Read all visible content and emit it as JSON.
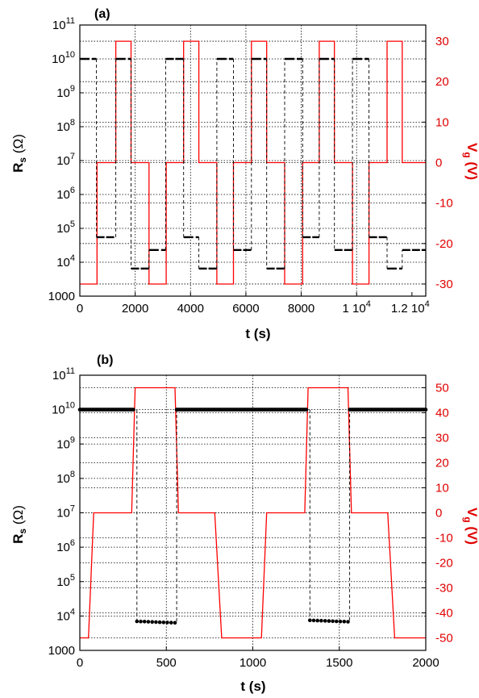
{
  "chart_data": [
    {
      "type": "line",
      "title": "(a)",
      "xlabel": "t (s)",
      "ylabel": "R_s (Ω)",
      "y2label": "V_g (V)",
      "xlim": [
        0,
        12500
      ],
      "ylim_log10": [
        3,
        11
      ],
      "y2lim": [
        -33,
        34
      ],
      "x_ticks": [
        0,
        2000,
        4000,
        6000,
        8000,
        10000,
        12000
      ],
      "x_tick_labels": [
        "0",
        "2000",
        "4000",
        "6000",
        "8000",
        "1 10^4",
        "1.2 10^4"
      ],
      "y_tick_exp": [
        3,
        4,
        5,
        6,
        7,
        8,
        9,
        10,
        11
      ],
      "y_tick_labels": [
        "1000",
        "10^4",
        "10^5",
        "10^6",
        "10^7",
        "10^8",
        "10^9",
        "10^10",
        "10^11"
      ],
      "y2_ticks": [
        -30,
        -20,
        -10,
        0,
        10,
        20,
        30
      ],
      "grid": true,
      "series": [
        {
          "axis": "right",
          "color": "#ff0000",
          "x": [
            0,
            620,
            620,
            1300,
            1300,
            1850,
            1850,
            2500,
            2500,
            3120,
            3120,
            3750,
            3750,
            4300,
            4300,
            4950,
            4950,
            5550,
            5550,
            6200,
            6200,
            6750,
            6750,
            7400,
            7400,
            8050,
            8050,
            8650,
            8650,
            9200,
            9200,
            9850,
            9850,
            10450,
            10450,
            11100,
            11100,
            11650,
            11650,
            12500
          ],
          "y": [
            -30,
            -30,
            0,
            0,
            30,
            30,
            0,
            0,
            -30,
            -30,
            0,
            0,
            30,
            30,
            0,
            0,
            -30,
            -30,
            0,
            0,
            30,
            30,
            0,
            0,
            -30,
            -30,
            0,
            0,
            30,
            30,
            0,
            0,
            -30,
            -30,
            0,
            0,
            30,
            30,
            0,
            0
          ]
        },
        {
          "axis": "left",
          "color": "#000000",
          "segments": [
            {
              "x": [
                0,
                600
              ],
              "rs": 10000000000.0
            },
            {
              "x": [
                600,
                1300
              ],
              "rs": 55000
            },
            {
              "x": [
                1300,
                1850
              ],
              "rs": 10000000000.0
            },
            {
              "x": [
                1850,
                2500
              ],
              "rs": 6500
            },
            {
              "x": [
                2500,
                3100
              ],
              "rs": 23000
            },
            {
              "x": [
                3100,
                3750
              ],
              "rs": 10000000000.0
            },
            {
              "x": [
                3750,
                4300
              ],
              "rs": 55000
            },
            {
              "x": [
                4300,
                4950
              ],
              "rs": 6500
            },
            {
              "x": [
                4950,
                5550
              ],
              "rs": 10000000000.0
            },
            {
              "x": [
                5550,
                6200
              ],
              "rs": 23000
            },
            {
              "x": [
                6200,
                6750
              ],
              "rs": 10000000000.0
            },
            {
              "x": [
                6750,
                7400
              ],
              "rs": 6500
            },
            {
              "x": [
                7400,
                8050
              ],
              "rs": 10000000000.0
            },
            {
              "x": [
                8050,
                8650
              ],
              "rs": 55000
            },
            {
              "x": [
                8650,
                9200
              ],
              "rs": 10000000000.0
            },
            {
              "x": [
                9200,
                9850
              ],
              "rs": 23000
            },
            {
              "x": [
                9850,
                10450
              ],
              "rs": 10000000000.0
            },
            {
              "x": [
                10450,
                11100
              ],
              "rs": 55000
            },
            {
              "x": [
                11100,
                11650
              ],
              "rs": 6500
            },
            {
              "x": [
                11650,
                12500
              ],
              "rs": 23000
            }
          ],
          "start_value": 32000
        }
      ]
    },
    {
      "type": "line",
      "title": "(b)",
      "xlabel": "t (s)",
      "ylabel": "R_s (Ω)",
      "y2label": "V_g (V)",
      "xlim": [
        0,
        2000
      ],
      "ylim_log10": [
        3,
        11
      ],
      "y2lim": [
        -55,
        55
      ],
      "x_ticks": [
        0,
        500,
        1000,
        1500,
        2000
      ],
      "x_tick_labels": [
        "0",
        "500",
        "1000",
        "1500",
        "2000"
      ],
      "y_tick_exp": [
        3,
        4,
        5,
        6,
        7,
        8,
        9,
        10,
        11
      ],
      "y_tick_labels": [
        "1000",
        "10^4",
        "10^5",
        "10^6",
        "10^7",
        "10^8",
        "10^9",
        "10^10",
        "10^11"
      ],
      "y2_ticks": [
        -50,
        -40,
        -30,
        -20,
        -10,
        0,
        10,
        20,
        30,
        40,
        50
      ],
      "grid": true,
      "series": [
        {
          "axis": "right",
          "color": "#ff0000",
          "x": [
            0,
            50,
            80,
            300,
            320,
            550,
            570,
            780,
            820,
            1050,
            1080,
            1300,
            1320,
            1550,
            1570,
            1780,
            1820,
            2000
          ],
          "y": [
            -50,
            -50,
            0,
            0,
            50,
            50,
            0,
            0,
            -50,
            -50,
            0,
            0,
            50,
            50,
            0,
            0,
            -50,
            -50
          ]
        },
        {
          "axis": "left",
          "color": "#000000",
          "dots": [
            {
              "x": [
                0,
                310
              ],
              "rs": 10000000000.0,
              "n": 40
            },
            {
              "x": [
                330,
                550
              ],
              "rs": 7000,
              "n": 11
            },
            {
              "x": [
                560,
                1310
              ],
              "rs": 10000000000.0,
              "n": 95
            },
            {
              "x": [
                1330,
                1550
              ],
              "rs": 7500,
              "n": 11
            },
            {
              "x": [
                1560,
                2000
              ],
              "rs": 10000000000.0,
              "n": 56
            }
          ]
        }
      ]
    }
  ]
}
